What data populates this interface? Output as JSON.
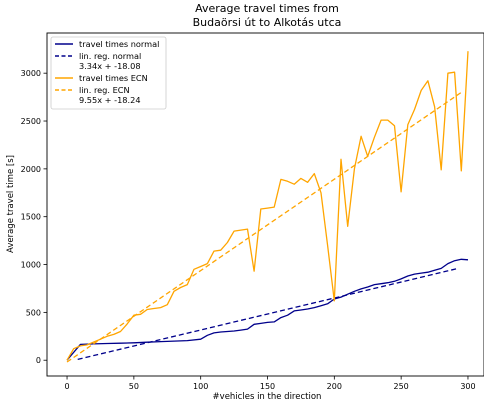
{
  "chart_data": {
    "type": "line",
    "title_lines": [
      "Average travel times from",
      "Budaörsi út to Alkotás utca"
    ],
    "xlabel": "#vehicles in the direction",
    "ylabel": "Average travel time [s]",
    "xlim": [
      -15,
      312
    ],
    "ylim": [
      -165,
      3420
    ],
    "xticks": [
      0,
      50,
      100,
      150,
      200,
      250,
      300
    ],
    "yticks": [
      0,
      500,
      1000,
      1500,
      2000,
      2500,
      3000
    ],
    "grid": false,
    "legend_position": "top-left",
    "colors": {
      "normal": "#00008b",
      "ecn": "#ffa500"
    },
    "series": [
      {
        "name": "travel times normal",
        "style": "solid",
        "color": "#00008b",
        "x": [
          0,
          10,
          20,
          30,
          40,
          50,
          60,
          70,
          80,
          90,
          100,
          105,
          110,
          115,
          120,
          125,
          130,
          135,
          140,
          145,
          150,
          155,
          160,
          165,
          170,
          175,
          180,
          185,
          190,
          195,
          200,
          205,
          210,
          215,
          220,
          225,
          230,
          235,
          240,
          245,
          250,
          255,
          260,
          265,
          270,
          275,
          280,
          285,
          290,
          295,
          300
        ],
        "y": [
          0,
          165,
          170,
          175,
          178,
          182,
          188,
          195,
          200,
          205,
          220,
          260,
          285,
          295,
          300,
          305,
          315,
          325,
          375,
          385,
          395,
          400,
          445,
          470,
          515,
          525,
          535,
          550,
          570,
          590,
          640,
          660,
          690,
          720,
          745,
          765,
          790,
          800,
          810,
          825,
          850,
          880,
          900,
          910,
          920,
          940,
          960,
          1010,
          1040,
          1055,
          1050
        ]
      },
      {
        "name": "lin. reg. normal\n3.34x + -18.08",
        "style": "dashed",
        "color": "#00008b",
        "x": [
          8,
          292
        ],
        "y": [
          8.64,
          957.2
        ]
      },
      {
        "name": "travel times ECN",
        "style": "solid",
        "color": "#ffa500",
        "x": [
          0,
          5,
          10,
          15,
          20,
          25,
          30,
          35,
          40,
          45,
          50,
          55,
          60,
          65,
          70,
          75,
          80,
          85,
          90,
          95,
          100,
          105,
          110,
          115,
          120,
          125,
          130,
          135,
          140,
          145,
          150,
          155,
          160,
          165,
          170,
          175,
          180,
          185,
          190,
          195,
          200,
          205,
          210,
          215,
          220,
          225,
          230,
          235,
          240,
          245,
          250,
          255,
          260,
          265,
          270,
          275,
          280,
          285,
          290,
          295,
          300
        ],
        "y": [
          0,
          120,
          150,
          160,
          190,
          220,
          250,
          270,
          300,
          380,
          470,
          480,
          530,
          540,
          550,
          580,
          720,
          760,
          790,
          950,
          980,
          1010,
          1140,
          1150,
          1230,
          1350,
          1360,
          1370,
          930,
          1580,
          1590,
          1600,
          1890,
          1870,
          1840,
          1900,
          1860,
          1950,
          1750,
          1200,
          620,
          2100,
          1400,
          2000,
          2340,
          2130,
          2330,
          2510,
          2510,
          2450,
          1760,
          2460,
          2620,
          2820,
          2920,
          2650,
          1990,
          3000,
          3010,
          1980,
          3230
        ]
      },
      {
        "name": "lin. reg. ECN\n9.55x + -18.24",
        "style": "dashed",
        "color": "#ffa500",
        "x": [
          0,
          295
        ],
        "y": [
          -18.24,
          2799
        ]
      }
    ],
    "legend": [
      {
        "label_lines": [
          "travel times normal"
        ],
        "style": "solid",
        "color": "#00008b"
      },
      {
        "label_lines": [
          "lin. reg. normal",
          "3.34x + -18.08"
        ],
        "style": "dashed",
        "color": "#00008b"
      },
      {
        "label_lines": [
          "travel times ECN"
        ],
        "style": "solid",
        "color": "#ffa500"
      },
      {
        "label_lines": [
          "lin. reg. ECN",
          "9.55x + -18.24"
        ],
        "style": "dashed",
        "color": "#ffa500"
      }
    ]
  }
}
